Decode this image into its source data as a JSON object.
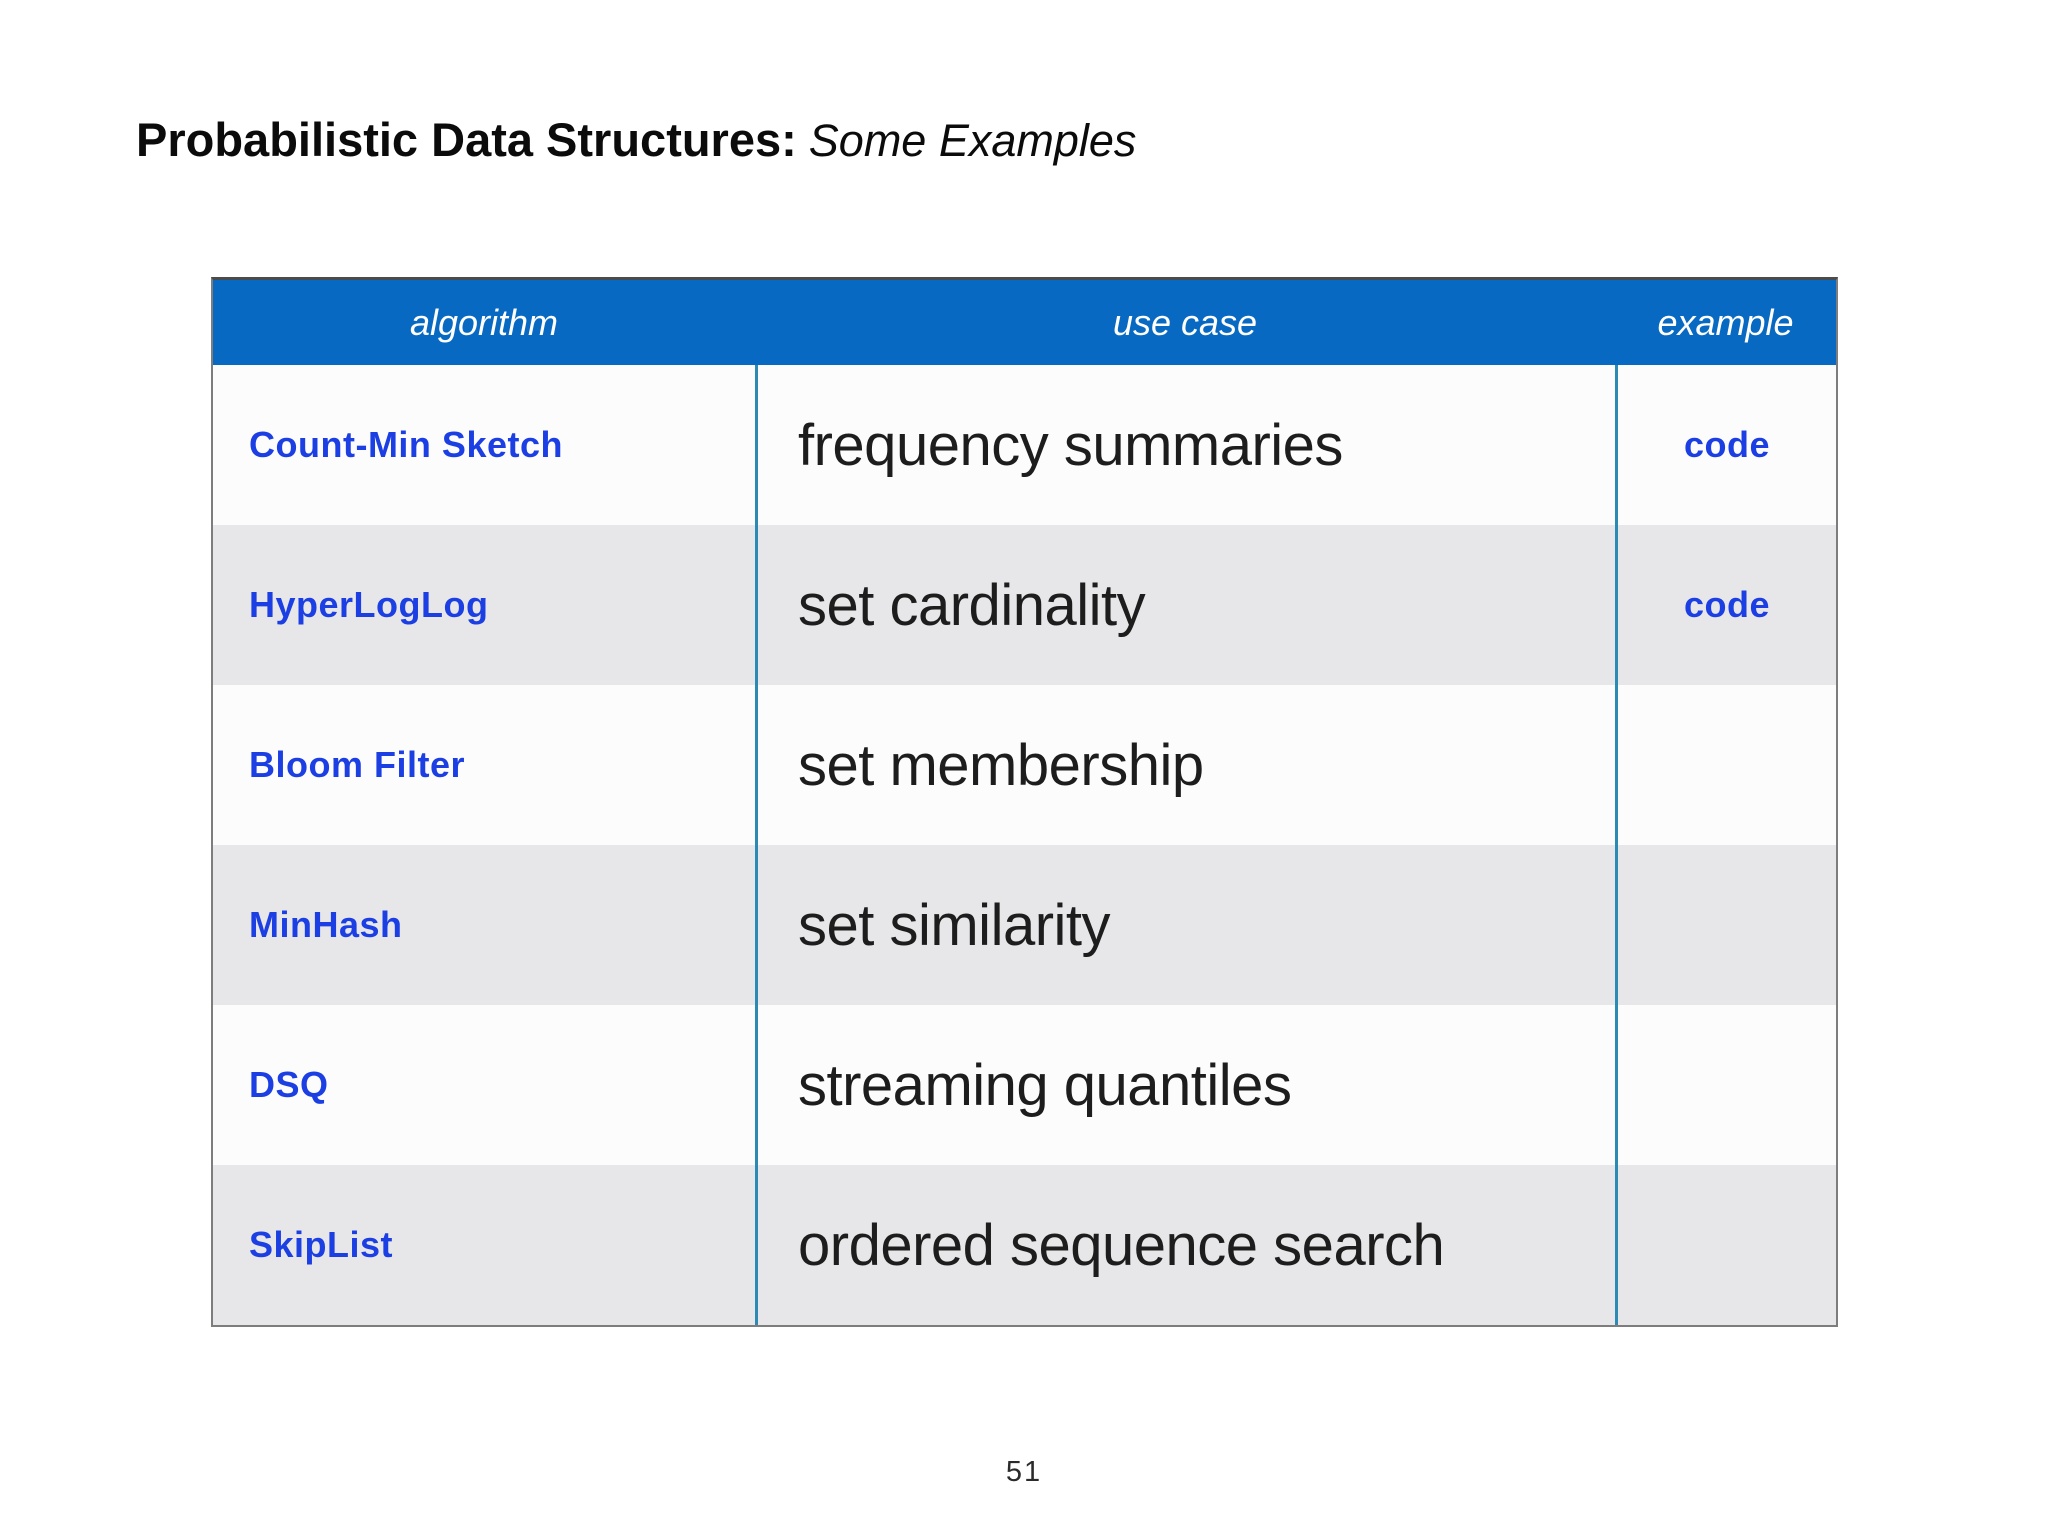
{
  "slide": {
    "title_bold": "Probabilistic Data Structures:",
    "title_italic": "Some Examples",
    "page_number": "51"
  },
  "colors": {
    "header_bg": "#0769c2",
    "link_blue": "#1c3fe3",
    "row_gray": "#e7e7e9",
    "row_white": "#fcfcfd",
    "column_divider_teal": "#2d8ab3"
  },
  "table": {
    "headers": {
      "algorithm": "algorithm",
      "use_case": "use case",
      "example": "example"
    },
    "rows": [
      {
        "algorithm": "Count-Min Sketch",
        "use_case": "frequency summaries",
        "example": "code"
      },
      {
        "algorithm": "HyperLogLog",
        "use_case": "set cardinality",
        "example": "code"
      },
      {
        "algorithm": "Bloom Filter",
        "use_case": "set membership",
        "example": ""
      },
      {
        "algorithm": "MinHash",
        "use_case": "set similarity",
        "example": ""
      },
      {
        "algorithm": "DSQ",
        "use_case": "streaming quantiles",
        "example": ""
      },
      {
        "algorithm": "SkipList",
        "use_case": "ordered sequence search",
        "example": ""
      }
    ]
  }
}
